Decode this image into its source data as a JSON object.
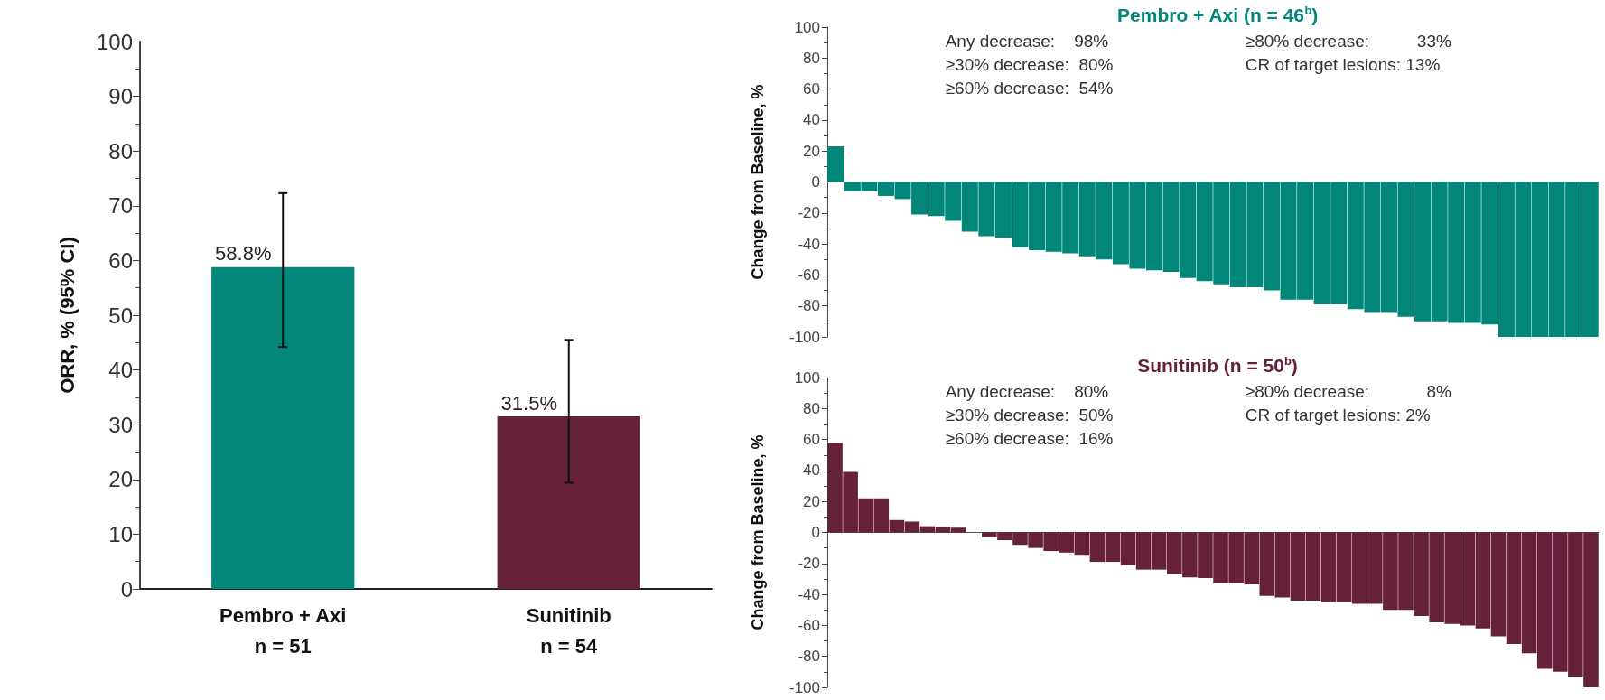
{
  "chart_data": [
    {
      "type": "bar",
      "ylabel": "ORR, % (95% CI)",
      "categories": [
        "Pembro + Axi\nn = 51",
        "Sunitinib\nn = 54"
      ],
      "values": [
        58.8,
        31.5
      ],
      "colors": [
        "#00877a",
        "#65203a"
      ],
      "errors": [
        [
          44.2,
          72.3
        ],
        [
          19.4,
          45.5
        ]
      ],
      "value_labels": [
        "58.8%",
        "31.5%"
      ],
      "ylim": [
        0,
        100
      ],
      "yticks": [
        0,
        10,
        20,
        30,
        40,
        50,
        60,
        70,
        80,
        90,
        100
      ]
    },
    {
      "type": "bar",
      "title": "Pembro + Axi (n = 46$^{b}$)",
      "ylabel": "Change from Baseline, %",
      "color": "#00877a",
      "categories": [
        null,
        null,
        null,
        null,
        null,
        null,
        null,
        null,
        null,
        null,
        null,
        null,
        null,
        null,
        null,
        null,
        null,
        null,
        null,
        null,
        null,
        null,
        null,
        null,
        null,
        null,
        null,
        null,
        null,
        null,
        null,
        null,
        null,
        null,
        null,
        null,
        null,
        null,
        null,
        null,
        null,
        null,
        null,
        null,
        null,
        null
      ],
      "values": [
        23,
        -6,
        -6,
        -9,
        -11,
        -21,
        -22,
        -25,
        -32,
        -35,
        -36,
        -42,
        -44,
        -45,
        -46,
        -48,
        -50,
        -53,
        -56,
        -57,
        -58,
        -62,
        -64,
        -66,
        -68,
        -68,
        -70,
        -76,
        -76,
        -79,
        -79,
        -82,
        -84,
        -84,
        -87,
        -90,
        -90,
        -91,
        -91,
        -92,
        -100,
        -100,
        -100,
        -100,
        -100,
        -100
      ],
      "annotations": [
        "Any decrease:    98%",
        "≥30% decrease:  80%",
        "≥60% decrease:  54%",
        "≥80% decrease:          33%",
        "CR of target lesions: 13%"
      ],
      "ylim": [
        -100,
        100
      ],
      "yticks": [
        -100,
        -80,
        -60,
        -40,
        -20,
        0,
        20,
        40,
        60,
        80,
        100
      ]
    },
    {
      "type": "bar",
      "title": "Sunitinib (n = 50$^{b}$)",
      "ylabel": "Change from Baseline, %",
      "color": "#65203a",
      "categories": [
        null,
        null,
        null,
        null,
        null,
        null,
        null,
        null,
        null,
        null,
        null,
        null,
        null,
        null,
        null,
        null,
        null,
        null,
        null,
        null,
        null,
        null,
        null,
        null,
        null,
        null,
        null,
        null,
        null,
        null,
        null,
        null,
        null,
        null,
        null,
        null,
        null,
        null,
        null,
        null,
        null,
        null,
        null,
        null,
        null,
        null,
        null,
        null,
        null,
        null
      ],
      "values": [
        58,
        39,
        22,
        22,
        8,
        7,
        4,
        3.5,
        3,
        0,
        -3,
        -5,
        -8,
        -10,
        -12,
        -13,
        -15,
        -19,
        -19,
        -21,
        -24,
        -24,
        -27,
        -29,
        -29.5,
        -33,
        -33,
        -33.5,
        -41,
        -42,
        -44,
        -44,
        -45,
        -45,
        -46,
        -46,
        -50,
        -50,
        -54,
        -58,
        -59,
        -60,
        -62,
        -67,
        -72,
        -78,
        -88,
        -90,
        -93,
        -100
      ],
      "annotations": [
        "Any decrease:    80%",
        "≥30% decrease:  50%",
        "≥60% decrease:  16%",
        "≥80% decrease:            8%",
        "CR of target lesions: 2%"
      ],
      "ylim": [
        -100,
        100
      ],
      "yticks": [
        -100,
        -80,
        -60,
        -40,
        -20,
        0,
        20,
        40,
        60,
        80,
        100
      ]
    }
  ]
}
